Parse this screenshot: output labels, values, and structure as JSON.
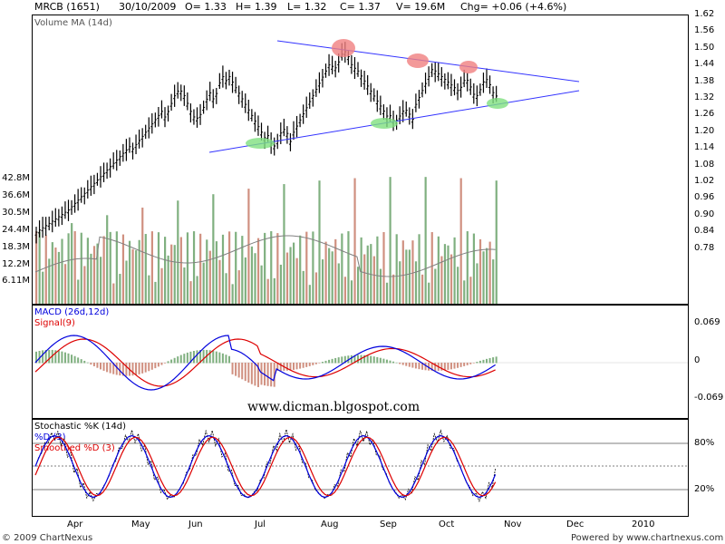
{
  "header": {
    "symbol": "MRCB (1651)",
    "date": "30/10/2009",
    "open": "O= 1.33",
    "high": "H= 1.39",
    "low": "L= 1.32",
    "close": "C= 1.37",
    "volume": "V= 19.6M",
    "change": "Chg= +0.06 (+4.6%)"
  },
  "price_panel": {
    "legend": "Volume MA (14d)",
    "price_ticks": [
      "1.62",
      "1.56",
      "1.50",
      "1.44",
      "1.38",
      "1.32",
      "1.26",
      "1.20",
      "1.14",
      "1.08",
      "1.02",
      "0.96",
      "0.90",
      "0.84",
      "0.78"
    ],
    "volume_ticks": [
      "42.8M",
      "36.6M",
      "30.5M",
      "24.4M",
      "18.3M",
      "12.2M",
      "6.11M"
    ]
  },
  "macd_panel": {
    "legend_macd": "MACD (26d,12d)",
    "legend_signal": "Signal(9)",
    "ticks": [
      "0.069",
      "0",
      "-0.069"
    ],
    "watermark": "www.dicman.blgospot.com"
  },
  "stoch_panel": {
    "legend_k": "Stochastic %K (14d)",
    "legend_d": "%D (3)",
    "legend_sd": "Smoothed %D (3)",
    "ticks": [
      "80%",
      "20%"
    ]
  },
  "x_axis": {
    "labels": [
      "Apr",
      "May",
      "Jun",
      "Jul",
      "Aug",
      "Sep",
      "Oct",
      "Nov",
      "Dec",
      "2010"
    ]
  },
  "footer": {
    "copyright": "© 2009 ChartNexus",
    "powered": "Powered by www.chartnexus.com"
  },
  "colors": {
    "price": "#000000",
    "trendline": "#3333ff",
    "volume_up": "#80b080",
    "volume_down": "#d09080",
    "volume_ma": "#808080",
    "macd": "#0000dd",
    "signal": "#dd0000",
    "stoch_k": "#000000",
    "stoch_d": "#0000dd",
    "stoch_sd": "#dd0000",
    "peak_marker": "#f08080",
    "trough_marker": "#80e080"
  },
  "chart_data": [
    {
      "type": "line",
      "title": "MRCB (1651)",
      "x": [
        "Apr",
        "May",
        "Jun",
        "Jul",
        "Aug",
        "Sep",
        "Oct",
        "Nov"
      ],
      "series": [
        {
          "name": "MRCB (1651)",
          "values": [
            0.88,
            1.36,
            1.38,
            1.18,
            1.46,
            1.25,
            1.42,
            1.37
          ]
        }
      ],
      "ylim": [
        0.74,
        1.62
      ],
      "grid": false
    },
    {
      "type": "bar",
      "title": "Volume MA (14d)",
      "ylim": [
        0,
        46
      ],
      "series": [
        {
          "name": "Volume MA (14d)",
          "values": [
            6,
            16,
            15,
            12,
            11,
            9,
            8,
            7,
            7,
            6,
            6,
            6,
            6,
            7
          ]
        }
      ]
    },
    {
      "type": "line",
      "title": "MACD (26d,12d)",
      "x": [
        "Apr",
        "May",
        "Jun",
        "Jul",
        "Aug",
        "Sep",
        "Oct",
        "Nov"
      ],
      "series": [
        {
          "name": "MACD (26d,12d)",
          "values": [
            0.0,
            0.04,
            0.085,
            0.05,
            -0.01,
            0.02,
            0.03,
            -0.01
          ]
        },
        {
          "name": "Signal(9)",
          "values": [
            0.0,
            0.03,
            0.07,
            0.055,
            0.0,
            0.015,
            0.02,
            -0.005
          ]
        }
      ],
      "ylim": [
        -0.1,
        0.1
      ]
    },
    {
      "type": "line",
      "title": "Stochastic %K (14d)",
      "x": [
        "Apr",
        "May",
        "Jun",
        "Jul",
        "Aug",
        "Sep",
        "Oct",
        "Nov"
      ],
      "series": [
        {
          "name": "%D (3)",
          "values": [
            60,
            85,
            75,
            15,
            90,
            10,
            85,
            15
          ]
        },
        {
          "name": "Smoothed %D (3)",
          "values": [
            58,
            82,
            78,
            18,
            88,
            12,
            82,
            18
          ]
        }
      ],
      "ylim": [
        0,
        100
      ]
    }
  ]
}
